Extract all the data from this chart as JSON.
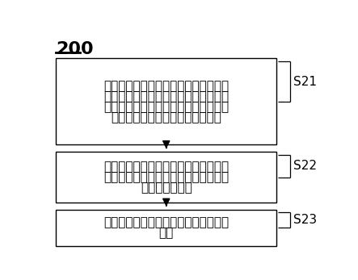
{
  "title": "200",
  "boxes": [
    {
      "lines": [
        "响应来自主处理器的第一核间中断消息",
        "确定中断处理函数，所述第一核间中断",
        "消息包括查询标识位，所述第一核间中",
        "断消息的所述查询标识位为第一值"
      ],
      "label": "S21"
    },
    {
      "lines": [
        "通过所述中断处理函数获取预设寄存器",
        "的值，并根据所述预设寄存器的值确定",
        "内核调用栈信息"
      ],
      "label": "S22"
    },
    {
      "lines": [
        "将所述内核调用栈信息保存在预设缓存",
        "地址"
      ],
      "label": "S23"
    }
  ],
  "box_color": "#ffffff",
  "box_edge_color": "#000000",
  "arrow_color": "#000000",
  "label_color": "#000000",
  "background_color": "#ffffff",
  "font_size": 11,
  "title_font_size": 16
}
